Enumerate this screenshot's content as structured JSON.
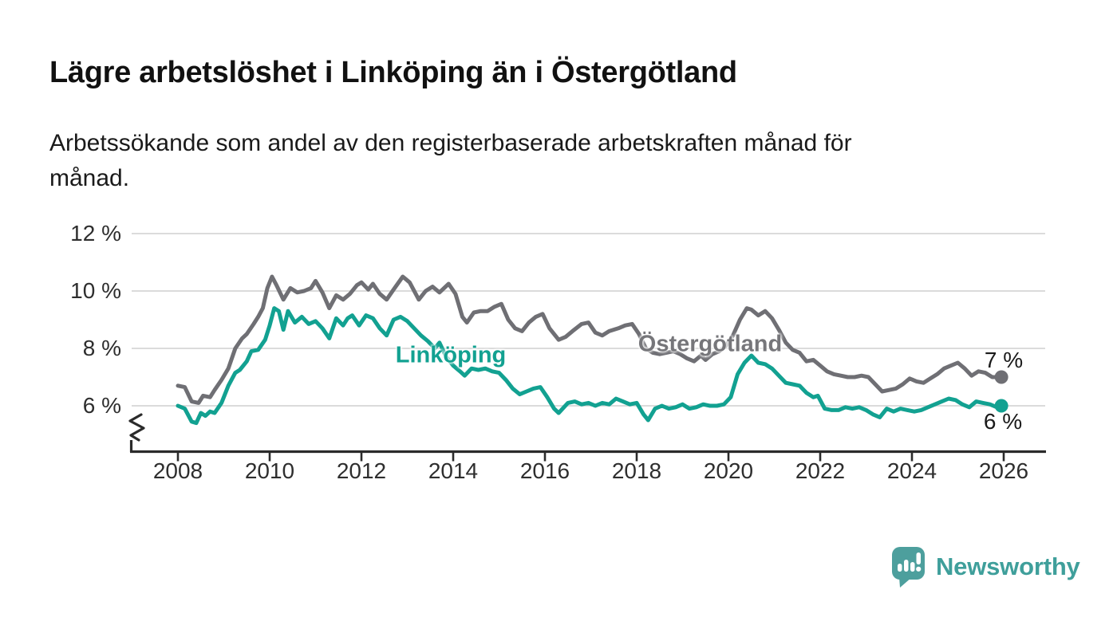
{
  "header": {
    "title": "Lägre arbetslöshet i Linköping än i Östergötland",
    "subtitle_lines": [
      "Arbetssökande som andel av den registerbaserade arbetskraften månad för",
      "månad."
    ]
  },
  "footer": {
    "brand": "Newsworthy"
  },
  "colors": {
    "linkoping": "#12a191",
    "ostergotland": "#6f6f74",
    "grid": "#dbdbdb",
    "axis": "#2b2b2b",
    "text": "#1a1a1a",
    "logo_icon": "#4d9f9d",
    "logo_text": "#3f9f9b"
  },
  "chart_data": {
    "type": "line",
    "title": "Lägre arbetslöshet i Linköping än i Östergötland",
    "subtitle": "Arbetssökande som andel av den registerbaserade arbetskraften månad för månad.",
    "grid": true,
    "legend_position": "inline-labels",
    "x_axis": {
      "ticks": [
        2008,
        2010,
        2012,
        2014,
        2016,
        2018,
        2020,
        2022,
        2024,
        2026
      ],
      "range": [
        2007.0,
        2026.9
      ]
    },
    "y_axis": {
      "tick_labels": [
        "12 %",
        "10 %",
        "8 %",
        "6 %"
      ],
      "tick_values": [
        12,
        10,
        8,
        6
      ],
      "unit": "%",
      "axis_break_at_bottom": true,
      "range_shown": [
        5.1,
        12.4
      ]
    },
    "series": [
      {
        "name": "Östergötland",
        "color": "#6f6f74",
        "end_label": "7 %",
        "end_value": 7.0,
        "points": [
          [
            2008.0,
            6.7
          ],
          [
            2008.15,
            6.65
          ],
          [
            2008.3,
            6.15
          ],
          [
            2008.45,
            6.1
          ],
          [
            2008.55,
            6.35
          ],
          [
            2008.7,
            6.3
          ],
          [
            2008.8,
            6.55
          ],
          [
            2008.95,
            6.9
          ],
          [
            2009.1,
            7.3
          ],
          [
            2009.25,
            8.0
          ],
          [
            2009.4,
            8.35
          ],
          [
            2009.5,
            8.5
          ],
          [
            2009.65,
            8.85
          ],
          [
            2009.75,
            9.1
          ],
          [
            2009.85,
            9.4
          ],
          [
            2009.95,
            10.1
          ],
          [
            2010.05,
            10.5
          ],
          [
            2010.15,
            10.2
          ],
          [
            2010.3,
            9.7
          ],
          [
            2010.45,
            10.1
          ],
          [
            2010.6,
            9.95
          ],
          [
            2010.75,
            10.0
          ],
          [
            2010.9,
            10.1
          ],
          [
            2011.0,
            10.35
          ],
          [
            2011.15,
            9.95
          ],
          [
            2011.3,
            9.4
          ],
          [
            2011.45,
            9.85
          ],
          [
            2011.6,
            9.7
          ],
          [
            2011.75,
            9.9
          ],
          [
            2011.9,
            10.2
          ],
          [
            2012.0,
            10.3
          ],
          [
            2012.15,
            10.05
          ],
          [
            2012.25,
            10.25
          ],
          [
            2012.4,
            9.9
          ],
          [
            2012.55,
            9.7
          ],
          [
            2012.7,
            10.05
          ],
          [
            2012.9,
            10.5
          ],
          [
            2013.05,
            10.3
          ],
          [
            2013.25,
            9.7
          ],
          [
            2013.4,
            10.0
          ],
          [
            2013.55,
            10.15
          ],
          [
            2013.7,
            9.95
          ],
          [
            2013.9,
            10.25
          ],
          [
            2014.05,
            9.9
          ],
          [
            2014.2,
            9.1
          ],
          [
            2014.3,
            8.9
          ],
          [
            2014.45,
            9.25
          ],
          [
            2014.6,
            9.3
          ],
          [
            2014.75,
            9.3
          ],
          [
            2014.9,
            9.45
          ],
          [
            2015.05,
            9.55
          ],
          [
            2015.2,
            9.0
          ],
          [
            2015.35,
            8.7
          ],
          [
            2015.5,
            8.6
          ],
          [
            2015.65,
            8.9
          ],
          [
            2015.8,
            9.1
          ],
          [
            2015.95,
            9.2
          ],
          [
            2016.1,
            8.7
          ],
          [
            2016.3,
            8.3
          ],
          [
            2016.45,
            8.4
          ],
          [
            2016.6,
            8.6
          ],
          [
            2016.8,
            8.85
          ],
          [
            2016.95,
            8.9
          ],
          [
            2017.1,
            8.55
          ],
          [
            2017.25,
            8.45
          ],
          [
            2017.4,
            8.6
          ],
          [
            2017.6,
            8.7
          ],
          [
            2017.75,
            8.8
          ],
          [
            2017.9,
            8.85
          ],
          [
            2018.05,
            8.5
          ],
          [
            2018.2,
            8.0
          ],
          [
            2018.35,
            7.85
          ],
          [
            2018.5,
            7.8
          ],
          [
            2018.65,
            7.85
          ],
          [
            2018.8,
            7.9
          ],
          [
            2018.95,
            7.8
          ],
          [
            2019.1,
            7.65
          ],
          [
            2019.25,
            7.55
          ],
          [
            2019.4,
            7.75
          ],
          [
            2019.5,
            7.6
          ],
          [
            2019.65,
            7.8
          ],
          [
            2019.8,
            7.9
          ],
          [
            2019.95,
            8.1
          ],
          [
            2020.1,
            8.45
          ],
          [
            2020.25,
            9.0
          ],
          [
            2020.4,
            9.4
          ],
          [
            2020.5,
            9.35
          ],
          [
            2020.65,
            9.15
          ],
          [
            2020.8,
            9.3
          ],
          [
            2020.95,
            9.05
          ],
          [
            2021.1,
            8.65
          ],
          [
            2021.25,
            8.2
          ],
          [
            2021.4,
            7.95
          ],
          [
            2021.55,
            7.85
          ],
          [
            2021.7,
            7.55
          ],
          [
            2021.85,
            7.6
          ],
          [
            2022.0,
            7.4
          ],
          [
            2022.15,
            7.2
          ],
          [
            2022.3,
            7.1
          ],
          [
            2022.45,
            7.05
          ],
          [
            2022.6,
            7.0
          ],
          [
            2022.75,
            7.0
          ],
          [
            2022.9,
            7.05
          ],
          [
            2023.05,
            7.0
          ],
          [
            2023.2,
            6.75
          ],
          [
            2023.35,
            6.5
          ],
          [
            2023.5,
            6.55
          ],
          [
            2023.65,
            6.6
          ],
          [
            2023.8,
            6.75
          ],
          [
            2023.95,
            6.95
          ],
          [
            2024.1,
            6.85
          ],
          [
            2024.25,
            6.8
          ],
          [
            2024.4,
            6.95
          ],
          [
            2024.55,
            7.1
          ],
          [
            2024.7,
            7.3
          ],
          [
            2024.85,
            7.4
          ],
          [
            2025.0,
            7.5
          ],
          [
            2025.15,
            7.3
          ],
          [
            2025.3,
            7.05
          ],
          [
            2025.45,
            7.2
          ],
          [
            2025.6,
            7.15
          ],
          [
            2025.75,
            7.0
          ],
          [
            2025.95,
            7.0
          ]
        ]
      },
      {
        "name": "Linköping",
        "color": "#12a191",
        "end_label": "6 %",
        "end_value": 6.0,
        "points": [
          [
            2008.0,
            6.0
          ],
          [
            2008.15,
            5.9
          ],
          [
            2008.3,
            5.45
          ],
          [
            2008.4,
            5.4
          ],
          [
            2008.5,
            5.75
          ],
          [
            2008.6,
            5.65
          ],
          [
            2008.7,
            5.8
          ],
          [
            2008.8,
            5.75
          ],
          [
            2008.95,
            6.1
          ],
          [
            2009.1,
            6.7
          ],
          [
            2009.25,
            7.15
          ],
          [
            2009.35,
            7.25
          ],
          [
            2009.5,
            7.55
          ],
          [
            2009.6,
            7.9
          ],
          [
            2009.75,
            7.95
          ],
          [
            2009.9,
            8.3
          ],
          [
            2010.0,
            8.8
          ],
          [
            2010.1,
            9.4
          ],
          [
            2010.2,
            9.3
          ],
          [
            2010.3,
            8.65
          ],
          [
            2010.4,
            9.3
          ],
          [
            2010.55,
            8.9
          ],
          [
            2010.7,
            9.1
          ],
          [
            2010.85,
            8.85
          ],
          [
            2011.0,
            8.95
          ],
          [
            2011.15,
            8.7
          ],
          [
            2011.3,
            8.35
          ],
          [
            2011.45,
            9.05
          ],
          [
            2011.6,
            8.8
          ],
          [
            2011.7,
            9.05
          ],
          [
            2011.8,
            9.15
          ],
          [
            2011.95,
            8.8
          ],
          [
            2012.1,
            9.15
          ],
          [
            2012.25,
            9.05
          ],
          [
            2012.4,
            8.7
          ],
          [
            2012.55,
            8.45
          ],
          [
            2012.7,
            9.0
          ],
          [
            2012.85,
            9.1
          ],
          [
            2013.0,
            8.95
          ],
          [
            2013.15,
            8.7
          ],
          [
            2013.3,
            8.45
          ],
          [
            2013.45,
            8.25
          ],
          [
            2013.6,
            8.0
          ],
          [
            2013.7,
            8.2
          ],
          [
            2013.85,
            7.7
          ],
          [
            2014.0,
            7.4
          ],
          [
            2014.15,
            7.2
          ],
          [
            2014.25,
            7.05
          ],
          [
            2014.4,
            7.3
          ],
          [
            2014.55,
            7.25
          ],
          [
            2014.7,
            7.3
          ],
          [
            2014.85,
            7.2
          ],
          [
            2015.0,
            7.15
          ],
          [
            2015.15,
            6.9
          ],
          [
            2015.3,
            6.6
          ],
          [
            2015.45,
            6.4
          ],
          [
            2015.6,
            6.5
          ],
          [
            2015.75,
            6.6
          ],
          [
            2015.9,
            6.65
          ],
          [
            2016.05,
            6.3
          ],
          [
            2016.2,
            5.9
          ],
          [
            2016.3,
            5.75
          ],
          [
            2016.5,
            6.1
          ],
          [
            2016.65,
            6.15
          ],
          [
            2016.8,
            6.05
          ],
          [
            2016.95,
            6.1
          ],
          [
            2017.1,
            6.0
          ],
          [
            2017.25,
            6.1
          ],
          [
            2017.4,
            6.05
          ],
          [
            2017.55,
            6.25
          ],
          [
            2017.7,
            6.15
          ],
          [
            2017.85,
            6.05
          ],
          [
            2018.0,
            6.1
          ],
          [
            2018.15,
            5.7
          ],
          [
            2018.25,
            5.5
          ],
          [
            2018.4,
            5.9
          ],
          [
            2018.55,
            6.0
          ],
          [
            2018.7,
            5.9
          ],
          [
            2018.85,
            5.95
          ],
          [
            2019.0,
            6.05
          ],
          [
            2019.15,
            5.9
          ],
          [
            2019.3,
            5.95
          ],
          [
            2019.45,
            6.05
          ],
          [
            2019.6,
            6.0
          ],
          [
            2019.75,
            6.0
          ],
          [
            2019.9,
            6.05
          ],
          [
            2020.05,
            6.3
          ],
          [
            2020.2,
            7.1
          ],
          [
            2020.35,
            7.5
          ],
          [
            2020.5,
            7.75
          ],
          [
            2020.65,
            7.5
          ],
          [
            2020.8,
            7.45
          ],
          [
            2020.95,
            7.3
          ],
          [
            2021.1,
            7.05
          ],
          [
            2021.25,
            6.8
          ],
          [
            2021.4,
            6.75
          ],
          [
            2021.55,
            6.7
          ],
          [
            2021.7,
            6.45
          ],
          [
            2021.85,
            6.3
          ],
          [
            2021.95,
            6.35
          ],
          [
            2022.1,
            5.9
          ],
          [
            2022.25,
            5.85
          ],
          [
            2022.4,
            5.85
          ],
          [
            2022.55,
            5.95
          ],
          [
            2022.7,
            5.9
          ],
          [
            2022.85,
            5.95
          ],
          [
            2023.0,
            5.85
          ],
          [
            2023.15,
            5.7
          ],
          [
            2023.3,
            5.6
          ],
          [
            2023.45,
            5.9
          ],
          [
            2023.6,
            5.8
          ],
          [
            2023.75,
            5.9
          ],
          [
            2023.9,
            5.85
          ],
          [
            2024.05,
            5.8
          ],
          [
            2024.2,
            5.85
          ],
          [
            2024.35,
            5.95
          ],
          [
            2024.5,
            6.05
          ],
          [
            2024.65,
            6.15
          ],
          [
            2024.8,
            6.25
          ],
          [
            2024.95,
            6.2
          ],
          [
            2025.1,
            6.05
          ],
          [
            2025.25,
            5.95
          ],
          [
            2025.4,
            6.15
          ],
          [
            2025.55,
            6.1
          ],
          [
            2025.7,
            6.05
          ],
          [
            2025.85,
            5.95
          ],
          [
            2025.95,
            6.0
          ]
        ]
      }
    ]
  }
}
